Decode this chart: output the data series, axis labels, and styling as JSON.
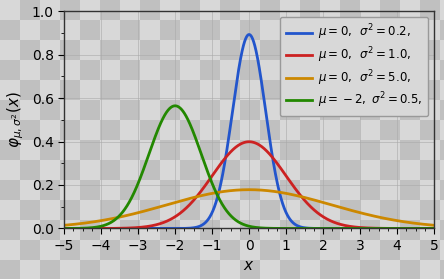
{
  "curves": [
    {
      "mu": 0,
      "sigma2": 0.2,
      "color": "#2255cc",
      "label": "\\mu = 0,\\;\\;  \\sigma^2 = 0.2,"
    },
    {
      "mu": 0,
      "sigma2": 1.0,
      "color": "#cc2222",
      "label": "\\mu = 0,\\;\\;  \\sigma^2 = 1.0,"
    },
    {
      "mu": 0,
      "sigma2": 5.0,
      "color": "#cc8800",
      "label": "\\mu = 0,\\;\\;  \\sigma^2 = 5.0,"
    },
    {
      "mu": -2,
      "sigma2": 0.5,
      "color": "#228800",
      "label": "\\mu = -2,\\; \\sigma^2 = 0.5,"
    }
  ],
  "xlim": [
    -5,
    5
  ],
  "ylim": [
    0,
    1.0
  ],
  "xlabel": "$x$",
  "ylabel": "$\\varphi_{\\mu,\\sigma^2}(x)$",
  "xticks": [
    -5,
    -4,
    -3,
    -2,
    -1,
    0,
    1,
    2,
    3,
    4,
    5
  ],
  "yticks": [
    0.0,
    0.2,
    0.4,
    0.6,
    0.8,
    1.0
  ],
  "figsize": [
    4.44,
    2.79
  ],
  "dpi": 100,
  "legend_loc": "upper right",
  "linewidth": 2.0,
  "checker_light": "#d8d8d8",
  "checker_dark": "#c0c0c0",
  "checker_size": 20,
  "grid_color": "#aaaaaa",
  "spine_color": "#333333"
}
